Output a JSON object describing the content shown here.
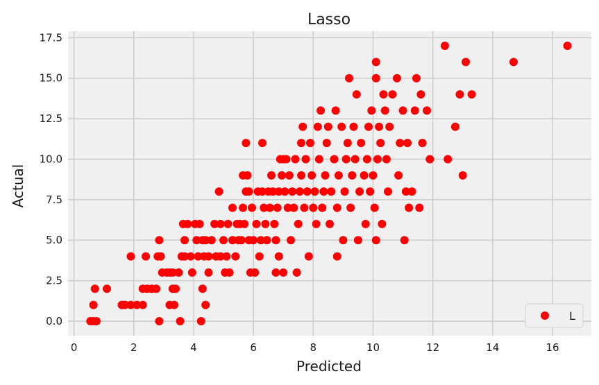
{
  "chart_data": {
    "type": "scatter",
    "title": "Lasso",
    "xlabel": "Predicted",
    "ylabel": "Actual",
    "xlim": [
      -0.2,
      17.3
    ],
    "ylim": [
      -0.9,
      17.9
    ],
    "xticks": [
      0,
      2,
      4,
      6,
      8,
      10,
      12,
      14,
      16
    ],
    "xtick_labels": [
      "0",
      "2",
      "4",
      "6",
      "8",
      "10",
      "12",
      "14",
      "16"
    ],
    "yticks": [
      0.0,
      2.5,
      5.0,
      7.5,
      10.0,
      12.5,
      15.0,
      17.5
    ],
    "ytick_labels": [
      "0.0",
      "2.5",
      "5.0",
      "7.5",
      "10.0",
      "12.5",
      "15.0",
      "17.5"
    ],
    "grid": true,
    "legend_position": "lower-right",
    "colors": {
      "background": "#f0f0f0",
      "grid": "#cbcbcb",
      "points": "#ff0000"
    },
    "series": [
      {
        "name": "L",
        "points": [
          [
            0.55,
            0
          ],
          [
            0.65,
            0
          ],
          [
            0.75,
            0
          ],
          [
            0.65,
            1
          ],
          [
            0.7,
            2
          ],
          [
            1.1,
            2
          ],
          [
            1.6,
            1
          ],
          [
            1.7,
            1
          ],
          [
            1.9,
            1
          ],
          [
            2.1,
            1
          ],
          [
            2.3,
            1
          ],
          [
            1.9,
            4
          ],
          [
            2.3,
            2
          ],
          [
            2.45,
            2
          ],
          [
            2.6,
            2
          ],
          [
            2.75,
            2
          ],
          [
            2.4,
            4
          ],
          [
            2.8,
            4
          ],
          [
            2.9,
            4
          ],
          [
            2.85,
            0
          ],
          [
            2.85,
            5
          ],
          [
            2.95,
            3
          ],
          [
            3.1,
            3
          ],
          [
            3.2,
            3
          ],
          [
            3.3,
            3
          ],
          [
            3.2,
            1
          ],
          [
            3.35,
            1
          ],
          [
            3.3,
            2
          ],
          [
            3.4,
            2
          ],
          [
            3.5,
            3
          ],
          [
            3.6,
            4
          ],
          [
            3.7,
            4
          ],
          [
            3.55,
            0
          ],
          [
            3.65,
            6
          ],
          [
            3.7,
            5
          ],
          [
            3.8,
            6
          ],
          [
            3.9,
            4
          ],
          [
            3.95,
            3
          ],
          [
            4.05,
            6
          ],
          [
            4.1,
            5
          ],
          [
            4.15,
            4
          ],
          [
            4.2,
            6
          ],
          [
            4.3,
            5
          ],
          [
            4.35,
            4
          ],
          [
            4.25,
            0
          ],
          [
            4.3,
            2
          ],
          [
            4.4,
            1
          ],
          [
            4.4,
            5
          ],
          [
            4.5,
            4
          ],
          [
            4.5,
            3
          ],
          [
            4.6,
            5
          ],
          [
            4.7,
            6
          ],
          [
            4.75,
            4
          ],
          [
            4.85,
            8
          ],
          [
            4.9,
            6
          ],
          [
            4.9,
            4
          ],
          [
            5.0,
            5
          ],
          [
            5.05,
            3
          ],
          [
            5.1,
            4
          ],
          [
            5.15,
            6
          ],
          [
            5.2,
            3
          ],
          [
            5.3,
            5
          ],
          [
            5.3,
            7
          ],
          [
            5.4,
            4
          ],
          [
            5.45,
            6
          ],
          [
            5.5,
            5
          ],
          [
            5.55,
            6
          ],
          [
            5.6,
            5
          ],
          [
            5.65,
            7
          ],
          [
            5.65,
            9
          ],
          [
            5.7,
            6
          ],
          [
            5.75,
            8
          ],
          [
            5.75,
            11
          ],
          [
            5.8,
            9
          ],
          [
            5.85,
            8
          ],
          [
            5.85,
            5
          ],
          [
            5.9,
            3
          ],
          [
            5.95,
            7
          ],
          [
            6.0,
            5
          ],
          [
            6.05,
            3
          ],
          [
            6.1,
            6
          ],
          [
            6.15,
            8
          ],
          [
            6.2,
            4
          ],
          [
            6.25,
            5
          ],
          [
            6.3,
            8
          ],
          [
            6.3,
            11
          ],
          [
            6.35,
            7
          ],
          [
            6.4,
            6
          ],
          [
            6.45,
            5
          ],
          [
            6.5,
            8
          ],
          [
            6.55,
            7
          ],
          [
            6.6,
            9
          ],
          [
            6.65,
            8
          ],
          [
            6.7,
            6
          ],
          [
            6.75,
            5
          ],
          [
            6.8,
            7
          ],
          [
            6.85,
            8
          ],
          [
            6.9,
            10
          ],
          [
            6.95,
            9
          ],
          [
            7.0,
            10
          ],
          [
            7.05,
            8
          ],
          [
            7.1,
            10
          ],
          [
            7.15,
            7
          ],
          [
            6.75,
            3
          ],
          [
            6.85,
            4
          ],
          [
            7.0,
            3
          ],
          [
            7.2,
            9
          ],
          [
            7.25,
            5
          ],
          [
            7.3,
            8
          ],
          [
            7.35,
            7
          ],
          [
            7.4,
            10
          ],
          [
            7.45,
            3
          ],
          [
            7.5,
            6
          ],
          [
            7.55,
            8
          ],
          [
            7.6,
            9
          ],
          [
            7.6,
            11
          ],
          [
            7.65,
            12
          ],
          [
            7.7,
            7
          ],
          [
            7.75,
            10
          ],
          [
            7.8,
            8
          ],
          [
            7.85,
            4
          ],
          [
            7.9,
            11
          ],
          [
            7.95,
            9
          ],
          [
            8.0,
            7
          ],
          [
            8.05,
            8
          ],
          [
            8.1,
            6
          ],
          [
            8.15,
            12
          ],
          [
            8.2,
            10
          ],
          [
            8.25,
            13
          ],
          [
            8.3,
            7
          ],
          [
            8.35,
            8
          ],
          [
            8.4,
            9
          ],
          [
            8.45,
            11
          ],
          [
            8.5,
            12
          ],
          [
            8.55,
            6
          ],
          [
            8.6,
            8
          ],
          [
            8.7,
            10
          ],
          [
            8.75,
            13
          ],
          [
            8.8,
            7
          ],
          [
            8.8,
            4
          ],
          [
            8.85,
            9
          ],
          [
            8.95,
            12
          ],
          [
            9.0,
            5
          ],
          [
            9.05,
            8
          ],
          [
            9.1,
            10
          ],
          [
            9.15,
            11
          ],
          [
            9.2,
            15
          ],
          [
            9.25,
            7
          ],
          [
            9.3,
            9
          ],
          [
            9.35,
            12
          ],
          [
            9.4,
            10
          ],
          [
            9.45,
            14
          ],
          [
            9.5,
            5
          ],
          [
            9.55,
            8
          ],
          [
            9.6,
            11
          ],
          [
            9.7,
            9
          ],
          [
            9.75,
            6
          ],
          [
            9.8,
            10
          ],
          [
            9.85,
            12
          ],
          [
            9.9,
            8
          ],
          [
            9.95,
            13
          ],
          [
            10.0,
            9
          ],
          [
            10.05,
            7
          ],
          [
            10.1,
            5
          ],
          [
            10.1,
            15
          ],
          [
            10.1,
            16
          ],
          [
            10.15,
            10
          ],
          [
            10.2,
            12
          ],
          [
            10.25,
            11
          ],
          [
            10.3,
            6
          ],
          [
            10.35,
            14
          ],
          [
            10.4,
            13
          ],
          [
            10.45,
            10
          ],
          [
            10.5,
            8
          ],
          [
            10.55,
            12
          ],
          [
            10.65,
            14
          ],
          [
            10.8,
            15
          ],
          [
            10.85,
            9
          ],
          [
            10.9,
            11
          ],
          [
            11.0,
            13
          ],
          [
            11.05,
            5
          ],
          [
            11.1,
            8
          ],
          [
            11.15,
            11
          ],
          [
            11.2,
            7
          ],
          [
            11.3,
            8
          ],
          [
            11.4,
            13
          ],
          [
            11.45,
            15
          ],
          [
            11.55,
            7
          ],
          [
            11.6,
            14
          ],
          [
            11.65,
            11
          ],
          [
            11.8,
            13
          ],
          [
            11.9,
            10
          ],
          [
            12.4,
            17
          ],
          [
            12.5,
            10
          ],
          [
            12.75,
            12
          ],
          [
            12.9,
            14
          ],
          [
            13.0,
            9
          ],
          [
            13.1,
            16
          ],
          [
            13.3,
            14
          ],
          [
            14.7,
            16
          ],
          [
            16.5,
            17
          ]
        ]
      }
    ]
  }
}
